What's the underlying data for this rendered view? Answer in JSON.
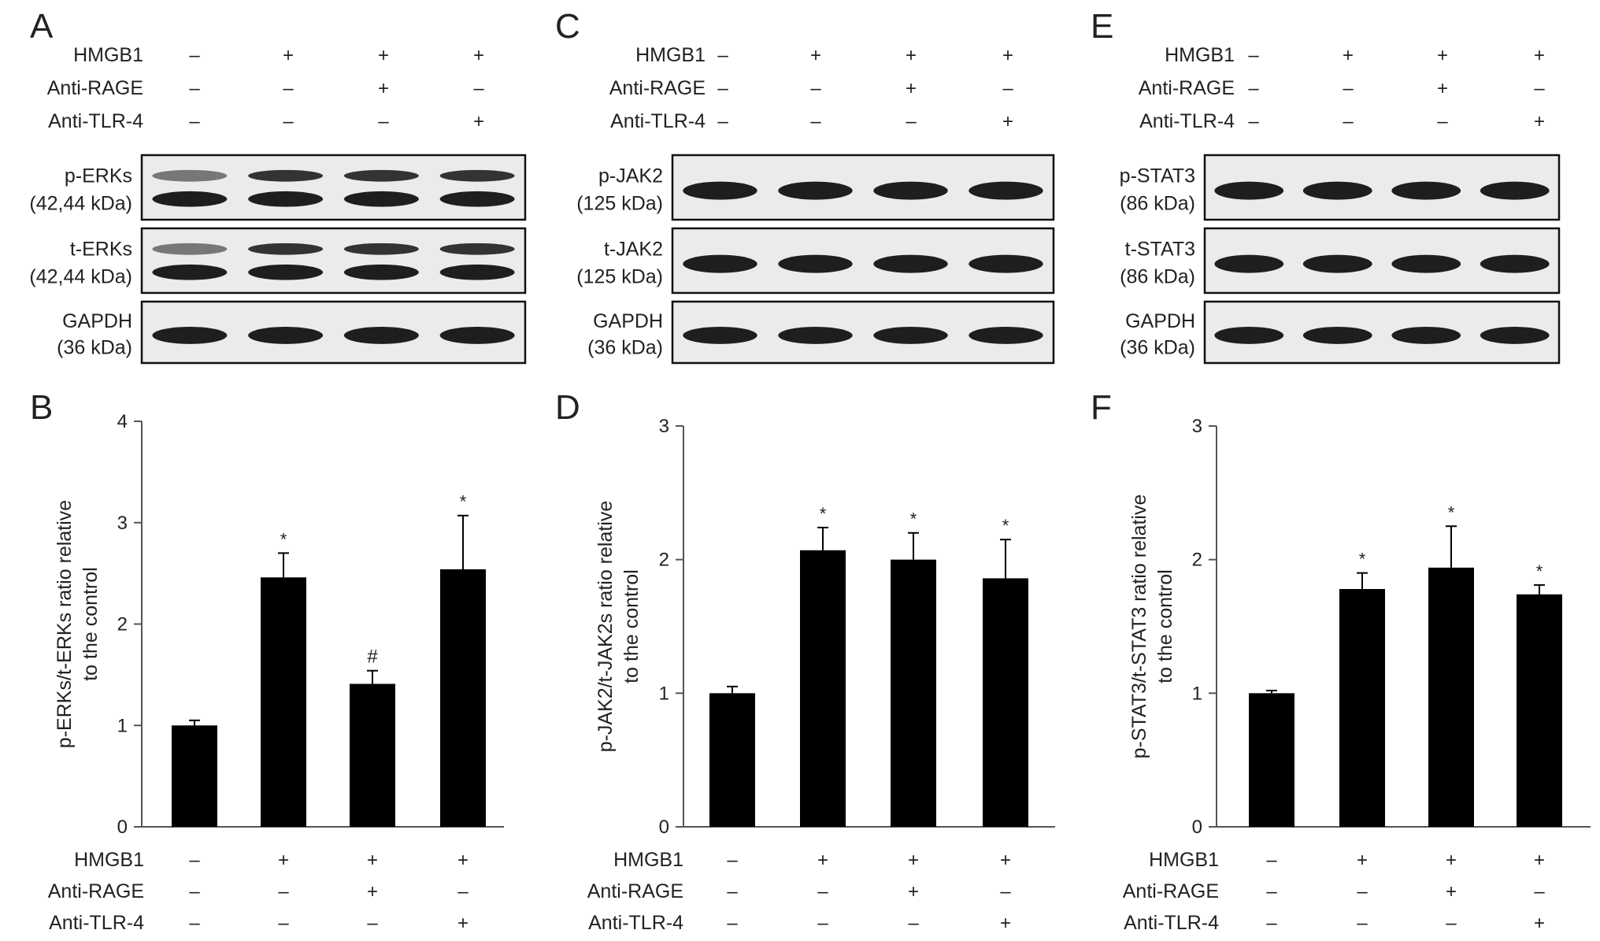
{
  "treatment_rows": [
    {
      "label": "HMGB1",
      "values": [
        "–",
        "+",
        "+",
        "+"
      ]
    },
    {
      "label": "Anti-RAGE",
      "values": [
        "–",
        "–",
        "+",
        "–"
      ]
    },
    {
      "label": "Anti-TLR-4",
      "values": [
        "–",
        "–",
        "–",
        "+"
      ]
    }
  ],
  "blot_panels": [
    {
      "letter": "A",
      "blots": [
        {
          "label_line1": "p-ERKs",
          "label_line2": "(42,44 kDa)",
          "bands": 2
        },
        {
          "label_line1": "t-ERKs",
          "label_line2": "(42,44 kDa)",
          "bands": 2
        },
        {
          "label_line1": "GAPDH",
          "label_line2": "(36 kDa)",
          "bands": 1
        }
      ]
    },
    {
      "letter": "C",
      "blots": [
        {
          "label_line1": "p-JAK2",
          "label_line2": "(125 kDa)",
          "bands": 1
        },
        {
          "label_line1": "t-JAK2",
          "label_line2": "(125 kDa)",
          "bands": 1
        },
        {
          "label_line1": "GAPDH",
          "label_line2": "(36 kDa)",
          "bands": 1
        }
      ]
    },
    {
      "letter": "E",
      "blots": [
        {
          "label_line1": "p-STAT3",
          "label_line2": "(86 kDa)",
          "bands": 1
        },
        {
          "label_line1": "t-STAT3",
          "label_line2": "(86 kDa)",
          "bands": 1
        },
        {
          "label_line1": "GAPDH",
          "label_line2": "(36 kDa)",
          "bands": 1
        }
      ]
    }
  ],
  "chart_data": [
    {
      "type": "bar",
      "letter": "B",
      "ylabel_line1": "p-ERKs/t-ERKs ratio relative",
      "ylabel_line2": "to the control",
      "ylim": [
        0,
        4
      ],
      "ticks": [
        0,
        1,
        2,
        3,
        4
      ],
      "values": [
        1.0,
        2.46,
        1.41,
        2.54
      ],
      "errors": [
        0.05,
        0.24,
        0.13,
        0.53
      ],
      "annotations": [
        "",
        "*",
        "#",
        "*"
      ]
    },
    {
      "type": "bar",
      "letter": "D",
      "ylabel_line1": "p-JAK2/t-JAK2s ratio relative",
      "ylabel_line2": "to the control",
      "ylim": [
        0,
        3
      ],
      "ticks": [
        0,
        1,
        2,
        3
      ],
      "values": [
        1.0,
        2.07,
        2.0,
        1.86
      ],
      "errors": [
        0.05,
        0.17,
        0.2,
        0.29
      ],
      "annotations": [
        "",
        "*",
        "*",
        "*"
      ]
    },
    {
      "type": "bar",
      "letter": "F",
      "ylabel_line1": "p-STAT3/t-STAT3 ratio relative",
      "ylabel_line2": "to the control",
      "ylim": [
        0,
        3
      ],
      "ticks": [
        0,
        1,
        2,
        3
      ],
      "values": [
        1.0,
        1.78,
        1.94,
        1.74
      ],
      "errors": [
        0.02,
        0.12,
        0.31,
        0.07
      ],
      "annotations": [
        "",
        "*",
        "*",
        "*"
      ]
    }
  ]
}
